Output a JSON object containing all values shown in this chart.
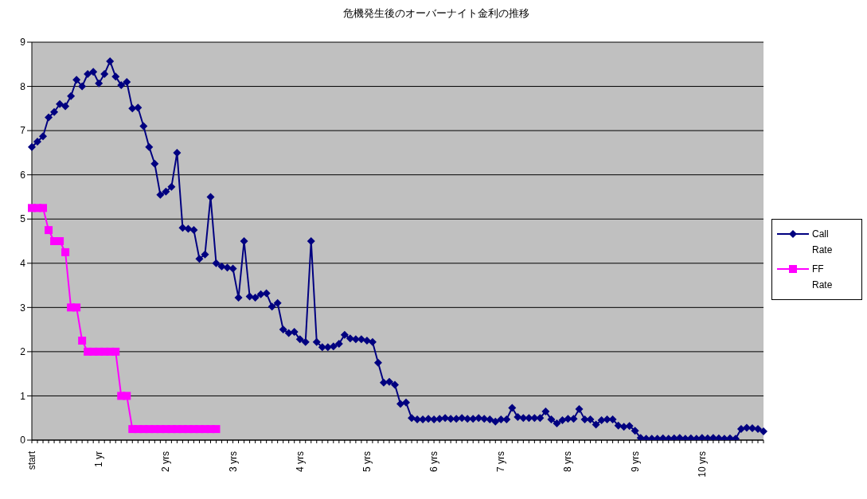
{
  "chart_data": {
    "type": "line",
    "title": "危機発生後のオーバーナイト金利の推移",
    "categories": [
      "start",
      null,
      null,
      null,
      null,
      null,
      null,
      null,
      null,
      null,
      null,
      null,
      "1 yr",
      null,
      null,
      null,
      null,
      null,
      null,
      null,
      null,
      null,
      null,
      null,
      "2 yrs",
      null,
      null,
      null,
      null,
      null,
      null,
      null,
      null,
      null,
      null,
      null,
      "3 yrs",
      null,
      null,
      null,
      null,
      null,
      null,
      null,
      null,
      null,
      null,
      null,
      "4 yrs",
      null,
      null,
      null,
      null,
      null,
      null,
      null,
      null,
      null,
      null,
      null,
      "5 yrs",
      null,
      null,
      null,
      null,
      null,
      null,
      null,
      null,
      null,
      null,
      null,
      "6 yrs",
      null,
      null,
      null,
      null,
      null,
      null,
      null,
      null,
      null,
      null,
      null,
      "7 yrs",
      null,
      null,
      null,
      null,
      null,
      null,
      null,
      null,
      null,
      null,
      null,
      "8 yrs",
      null,
      null,
      null,
      null,
      null,
      null,
      null,
      null,
      null,
      null,
      null,
      "9 yrs",
      null,
      null,
      null,
      null,
      null,
      null,
      null,
      null,
      null,
      null,
      null,
      "10 yrs",
      null,
      null,
      null,
      null,
      null,
      null,
      null,
      null,
      null,
      null,
      null
    ],
    "series": [
      {
        "name": "Call Rate",
        "color": "#000080",
        "marker": "diamond",
        "values": [
          6.63,
          6.75,
          6.87,
          7.3,
          7.42,
          7.6,
          7.55,
          7.78,
          8.15,
          8.0,
          8.28,
          8.33,
          8.07,
          8.28,
          8.57,
          8.22,
          8.03,
          8.1,
          7.5,
          7.52,
          7.1,
          6.63,
          6.25,
          5.55,
          5.62,
          5.73,
          6.5,
          4.8,
          4.78,
          4.75,
          4.1,
          4.2,
          5.5,
          4.0,
          3.93,
          3.9,
          3.88,
          3.22,
          4.5,
          3.25,
          3.22,
          3.3,
          3.32,
          3.02,
          3.1,
          2.5,
          2.42,
          2.45,
          2.28,
          2.22,
          4.5,
          2.22,
          2.1,
          2.1,
          2.12,
          2.18,
          2.38,
          2.3,
          2.28,
          2.28,
          2.25,
          2.22,
          1.75,
          1.3,
          1.32,
          1.25,
          0.82,
          0.85,
          0.5,
          0.47,
          0.47,
          0.48,
          0.47,
          0.48,
          0.5,
          0.48,
          0.48,
          0.5,
          0.48,
          0.48,
          0.5,
          0.48,
          0.47,
          0.42,
          0.47,
          0.47,
          0.73,
          0.52,
          0.5,
          0.5,
          0.5,
          0.5,
          0.65,
          0.47,
          0.38,
          0.45,
          0.48,
          0.48,
          0.7,
          0.47,
          0.47,
          0.35,
          0.45,
          0.47,
          0.47,
          0.33,
          0.3,
          0.32,
          0.21,
          0.05,
          0.03,
          0.03,
          0.03,
          0.04,
          0.03,
          0.04,
          0.05,
          0.03,
          0.04,
          0.03,
          0.05,
          0.04,
          0.05,
          0.04,
          0.03,
          0.04,
          0.03,
          0.25,
          0.28,
          0.27,
          0.25,
          0.2
        ]
      },
      {
        "name": "FF Rate",
        "color": "#ff00ff",
        "marker": "square",
        "values": [
          5.25,
          5.25,
          5.25,
          4.75,
          4.5,
          4.5,
          4.25,
          3.0,
          3.0,
          2.25,
          2.0,
          2.0,
          2.0,
          2.0,
          2.0,
          2.0,
          1.0,
          1.0,
          0.25,
          0.25,
          0.25,
          0.25,
          0.25,
          0.25,
          0.25,
          0.25,
          0.25,
          0.25,
          0.25,
          0.25,
          0.25,
          0.25,
          0.25,
          0.25,
          null,
          null,
          null,
          null,
          null,
          null,
          null,
          null,
          null,
          null,
          null,
          null,
          null,
          null,
          null,
          null,
          null,
          null,
          null,
          null,
          null,
          null,
          null,
          null,
          null,
          null,
          null,
          null,
          null,
          null,
          null,
          null,
          null,
          null,
          null,
          null,
          null,
          null,
          null,
          null,
          null,
          null,
          null,
          null,
          null,
          null,
          null,
          null,
          null,
          null,
          null,
          null,
          null,
          null,
          null,
          null,
          null,
          null,
          null,
          null,
          null,
          null,
          null,
          null,
          null,
          null,
          null,
          null,
          null,
          null,
          null,
          null,
          null,
          null,
          null,
          null,
          null,
          null,
          null,
          null,
          null,
          null,
          null,
          null,
          null,
          null,
          null,
          null,
          null,
          null,
          null,
          null,
          null,
          null,
          null,
          null,
          null,
          null
        ]
      }
    ],
    "ylim": [
      0,
      9
    ],
    "yticks": [
      0,
      1,
      2,
      3,
      4,
      5,
      6,
      7,
      8,
      9
    ],
    "grid": "y",
    "legend": "right",
    "line_style": "solid"
  }
}
